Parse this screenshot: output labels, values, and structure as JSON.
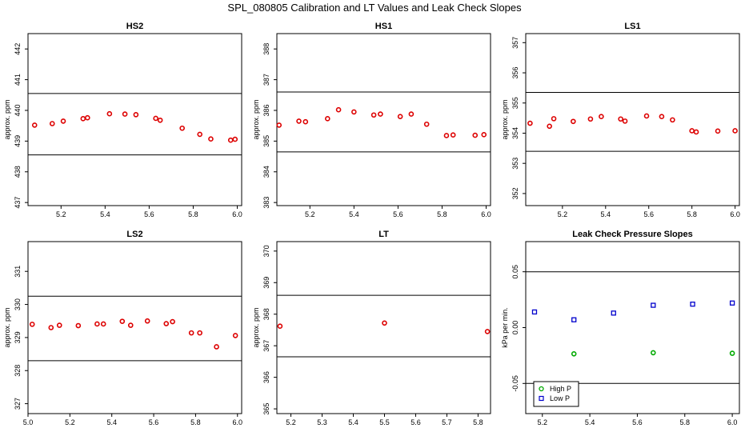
{
  "title": "SPL_080805  Calibration and LT Values and Leak Check Slopes",
  "chart_data": [
    {
      "type": "scatter",
      "title": "HS2",
      "ylabel": "approx. ppm",
      "xlim": [
        5.05,
        6.02
      ],
      "ylim": [
        436.9,
        442.5
      ],
      "xticks": [
        5.2,
        5.4,
        5.6,
        5.8,
        6.0
      ],
      "xtick_labels": [
        "5.2",
        "5.4",
        "5.6",
        "5.8",
        "6.0"
      ],
      "yticks": [
        437,
        438,
        439,
        440,
        441,
        442
      ],
      "ytick_labels": [
        "437",
        "438",
        "439",
        "440",
        "441",
        "442"
      ],
      "hlines": [
        440.55,
        438.55
      ],
      "series": [
        {
          "color": "#dd0000",
          "marker": "circle",
          "x": [
            5.08,
            5.16,
            5.21,
            5.3,
            5.32,
            5.42,
            5.49,
            5.54,
            5.63,
            5.65,
            5.75,
            5.83,
            5.88,
            5.97,
            5.99
          ],
          "y": [
            439.52,
            439.57,
            439.65,
            439.73,
            439.76,
            439.89,
            439.88,
            439.86,
            439.74,
            439.68,
            439.42,
            439.22,
            439.07,
            439.03,
            439.06
          ]
        }
      ]
    },
    {
      "type": "scatter",
      "title": "HS1",
      "ylabel": "approx. ppm",
      "xlim": [
        5.05,
        6.02
      ],
      "ylim": [
        382.9,
        388.5
      ],
      "xticks": [
        5.2,
        5.4,
        5.6,
        5.8,
        6.0
      ],
      "xtick_labels": [
        "5.2",
        "5.4",
        "5.6",
        "5.8",
        "6.0"
      ],
      "yticks": [
        383,
        384,
        385,
        386,
        387,
        388
      ],
      "ytick_labels": [
        "383",
        "384",
        "385",
        "386",
        "387",
        "388"
      ],
      "hlines": [
        386.6,
        384.65
      ],
      "series": [
        {
          "color": "#dd0000",
          "marker": "circle",
          "x": [
            5.06,
            5.15,
            5.18,
            5.28,
            5.33,
            5.4,
            5.49,
            5.52,
            5.61,
            5.66,
            5.73,
            5.82,
            5.85,
            5.95,
            5.99
          ],
          "y": [
            385.52,
            385.65,
            385.63,
            385.73,
            386.02,
            385.95,
            385.85,
            385.88,
            385.8,
            385.88,
            385.55,
            385.18,
            385.2,
            385.19,
            385.21
          ]
        }
      ]
    },
    {
      "type": "scatter",
      "title": "LS1",
      "ylabel": "approx. ppm",
      "xlim": [
        5.03,
        6.02
      ],
      "ylim": [
        351.6,
        357.3
      ],
      "xticks": [
        5.2,
        5.4,
        5.6,
        5.8,
        6.0
      ],
      "xtick_labels": [
        "5.2",
        "5.4",
        "5.6",
        "5.8",
        "6.0"
      ],
      "yticks": [
        352,
        353,
        354,
        355,
        356,
        357
      ],
      "ytick_labels": [
        "352",
        "353",
        "354",
        "355",
        "356",
        "357"
      ],
      "hlines": [
        355.35,
        353.4
      ],
      "series": [
        {
          "color": "#dd0000",
          "marker": "circle",
          "x": [
            5.05,
            5.14,
            5.16,
            5.25,
            5.33,
            5.38,
            5.47,
            5.49,
            5.59,
            5.66,
            5.71,
            5.8,
            5.82,
            5.92,
            6.0
          ],
          "y": [
            354.33,
            354.23,
            354.48,
            354.39,
            354.47,
            354.55,
            354.47,
            354.4,
            354.57,
            354.55,
            354.44,
            354.08,
            354.04,
            354.07,
            354.08
          ]
        }
      ]
    },
    {
      "type": "scatter",
      "title": "LS2",
      "ylabel": "approx. ppm",
      "xlim": [
        5.0,
        6.02
      ],
      "ylim": [
        326.7,
        331.9
      ],
      "xticks": [
        5.0,
        5.2,
        5.4,
        5.6,
        5.8,
        6.0
      ],
      "xtick_labels": [
        "5.0",
        "5.2",
        "5.4",
        "5.6",
        "5.8",
        "6.0"
      ],
      "yticks": [
        327,
        328,
        329,
        330,
        331
      ],
      "ytick_labels": [
        "327",
        "328",
        "329",
        "330",
        "331"
      ],
      "hlines": [
        330.25,
        328.3
      ],
      "series": [
        {
          "color": "#dd0000",
          "marker": "circle",
          "x": [
            5.02,
            5.11,
            5.15,
            5.24,
            5.33,
            5.36,
            5.45,
            5.49,
            5.57,
            5.66,
            5.69,
            5.78,
            5.82,
            5.9,
            5.99
          ],
          "y": [
            329.4,
            329.3,
            329.37,
            329.36,
            329.41,
            329.41,
            329.49,
            329.37,
            329.5,
            329.42,
            329.48,
            329.14,
            329.14,
            328.72,
            329.06
          ]
        }
      ]
    },
    {
      "type": "scatter",
      "title": "LT",
      "ylabel": "approx. ppm",
      "xlim": [
        5.155,
        5.84
      ],
      "ylim": [
        364.85,
        370.3
      ],
      "xticks": [
        5.2,
        5.3,
        5.4,
        5.5,
        5.6,
        5.7,
        5.8
      ],
      "xtick_labels": [
        "5.2",
        "5.3",
        "5.4",
        "5.5",
        "5.6",
        "5.7",
        "5.8"
      ],
      "yticks": [
        365,
        366,
        367,
        368,
        369,
        370
      ],
      "ytick_labels": [
        "365",
        "366",
        "367",
        "368",
        "369",
        "370"
      ],
      "hlines": [
        368.6,
        366.65
      ],
      "series": [
        {
          "color": "#dd0000",
          "marker": "circle",
          "x": [
            5.165,
            5.5,
            5.83
          ],
          "y": [
            367.62,
            367.72,
            367.45
          ]
        }
      ]
    },
    {
      "type": "scatter",
      "title": "Leak Check Pressure Slopes",
      "ylabel": "kPa per min.",
      "xlim": [
        5.13,
        6.03
      ],
      "ylim": [
        -0.077,
        0.077
      ],
      "xticks": [
        5.2,
        5.4,
        5.6,
        5.8,
        6.0
      ],
      "xtick_labels": [
        "5.2",
        "5.4",
        "5.6",
        "5.8",
        "6.0"
      ],
      "yticks": [
        -0.05,
        0.0,
        0.05
      ],
      "ytick_labels": [
        "-0.05",
        "0.00",
        "0.05"
      ],
      "hlines": [
        0.05,
        -0.05
      ],
      "legend": {
        "position": "bottom-left",
        "entries": [
          "High P",
          "Low P"
        ]
      },
      "series": [
        {
          "name": "High P",
          "color": "#00aa00",
          "marker": "circle",
          "x": [
            5.333,
            5.667,
            6.0
          ],
          "y": [
            -0.0235,
            -0.0225,
            -0.023
          ]
        },
        {
          "name": "Low P",
          "color": "#0000cc",
          "marker": "square",
          "x": [
            5.167,
            5.333,
            5.5,
            5.667,
            5.833,
            6.0
          ],
          "y": [
            0.014,
            0.007,
            0.013,
            0.02,
            0.021,
            0.022
          ]
        }
      ]
    }
  ]
}
